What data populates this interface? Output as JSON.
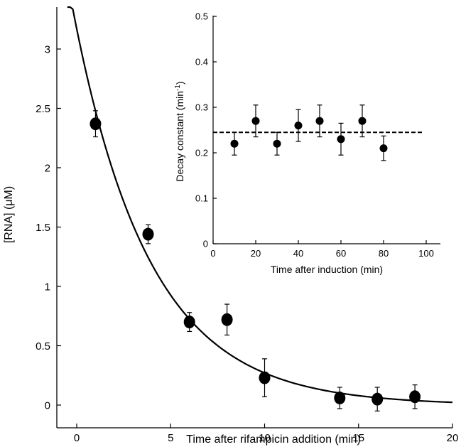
{
  "chart_data": [
    {
      "id": "main",
      "type": "scatter",
      "xlabel": "Time after rifampicin addition (min)",
      "ylabel": "[RNA] (μM)",
      "xlim": [
        -1,
        20
      ],
      "ylim": [
        -0.2,
        3.4
      ],
      "xticks": [
        0,
        5,
        10,
        15,
        20
      ],
      "xtick_labels": [
        "0",
        "5",
        "10",
        "15",
        "20"
      ],
      "yticks": [
        0,
        0.5,
        1,
        1.5,
        2,
        2.5,
        3
      ],
      "ytick_labels": [
        "0",
        "0.5",
        "1",
        "1.5",
        "2",
        "2.5",
        "3"
      ],
      "grid": false,
      "series": [
        {
          "kind": "points_with_error_bars",
          "color": "#000000",
          "points": [
            {
              "x": 1,
              "y": 2.37,
              "err": 0.11
            },
            {
              "x": 3.8,
              "y": 1.44,
              "err": 0.08
            },
            {
              "x": 6,
              "y": 0.7,
              "err": 0.08
            },
            {
              "x": 8,
              "y": 0.72,
              "err": 0.13
            },
            {
              "x": 10,
              "y": 0.23,
              "err": 0.16
            },
            {
              "x": 14,
              "y": 0.06,
              "err": 0.09
            },
            {
              "x": 16,
              "y": 0.05,
              "err": 0.1
            },
            {
              "x": 18,
              "y": 0.07,
              "err": 0.1
            }
          ]
        },
        {
          "kind": "fit_curve",
          "model": "exponential_decay",
          "amplitude": 3.17,
          "rate": 0.246,
          "x_range": [
            -0.5,
            20
          ],
          "color": "#000000"
        }
      ]
    },
    {
      "id": "inset",
      "type": "scatter",
      "xlabel": "Time after induction (min)",
      "ylabel": "Decay constant (min-1)",
      "xlim": [
        0,
        100
      ],
      "ylim": [
        0,
        0.5
      ],
      "xticks": [
        0,
        20,
        40,
        60,
        80,
        100
      ],
      "xtick_labels": [
        "0",
        "20",
        "40",
        "60",
        "80",
        "100"
      ],
      "yticks": [
        0,
        0.1,
        0.2,
        0.3,
        0.4,
        0.5
      ],
      "ytick_labels": [
        "0",
        "0.1",
        "0.2",
        "0.3",
        "0.4",
        "0.5"
      ],
      "grid": false,
      "series": [
        {
          "kind": "points_with_error_bars",
          "color": "#000000",
          "points": [
            {
              "x": 10,
              "y": 0.22,
              "err": 0.025
            },
            {
              "x": 20,
              "y": 0.27,
              "err": 0.035
            },
            {
              "x": 30,
              "y": 0.22,
              "err": 0.025
            },
            {
              "x": 40,
              "y": 0.26,
              "err": 0.035
            },
            {
              "x": 50,
              "y": 0.27,
              "err": 0.035
            },
            {
              "x": 60,
              "y": 0.23,
              "err": 0.035
            },
            {
              "x": 70,
              "y": 0.27,
              "err": 0.035
            },
            {
              "x": 80,
              "y": 0.21,
              "err": 0.027
            }
          ]
        },
        {
          "kind": "dashed_mean_line",
          "y": 0.245,
          "x_range": [
            0,
            98
          ],
          "color": "#000000"
        }
      ]
    }
  ]
}
